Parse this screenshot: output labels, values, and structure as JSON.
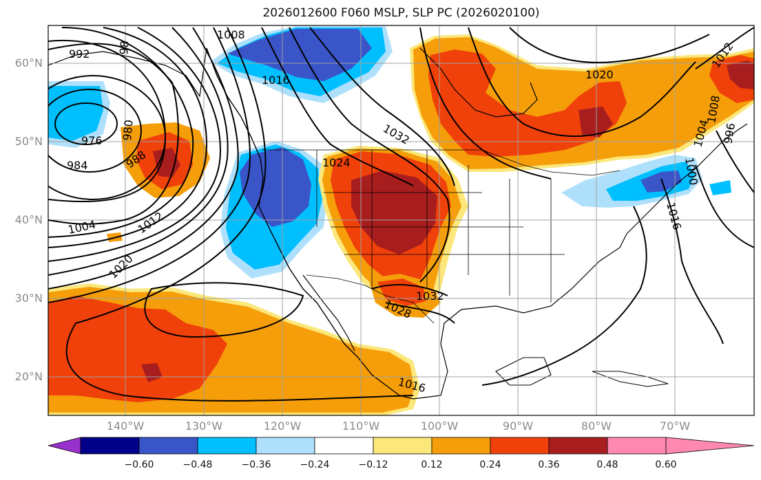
{
  "title": "2026012600 F060 MSLP, SLP PC (2026020100)",
  "map": {
    "lat_labels": [
      "60°N",
      "50°N",
      "40°N",
      "30°N",
      "20°N"
    ],
    "lon_labels": [
      "140°W",
      "130°W",
      "120°W",
      "110°W",
      "100°W",
      "90°W",
      "80°W",
      "70°W"
    ],
    "contour_labels": [
      "992",
      "98",
      "1008",
      "1016",
      "1032",
      "976",
      "980",
      "984",
      "988",
      "1024",
      "1004",
      "1012",
      "1020",
      "1028",
      "1032",
      "1016",
      "1020",
      "1016",
      "1012",
      "1008",
      "1004",
      "1000",
      "996"
    ],
    "colors": {
      "strong_positive": "#a81e1e",
      "positive": "#f0410a",
      "moderate_positive": "#f59e0a",
      "weak_positive": "#fbe77a",
      "weak_negative": "#afe0fb",
      "negative": "#00bfff",
      "strong_negative": "#3a55c8"
    }
  },
  "colorbar": {
    "ticks": [
      "−0.60",
      "−0.48",
      "−0.36",
      "−0.24",
      "−0.12",
      "0.12",
      "0.24",
      "0.36",
      "0.48",
      "0.60"
    ],
    "colors": [
      "#9932cc",
      "#000088",
      "#3a55c8",
      "#00bfff",
      "#afe0fb",
      "#ffffff",
      "#fbe77a",
      "#f59e0a",
      "#f0410a",
      "#a81e1e",
      "#ff88b0"
    ]
  }
}
